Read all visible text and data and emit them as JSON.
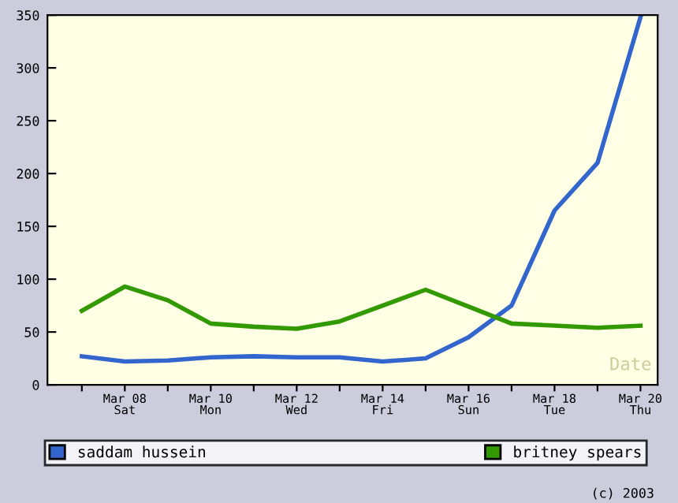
{
  "chart_data": {
    "type": "line",
    "xlabel": "Date",
    "categories": [
      null,
      "Mar 08\nSat",
      null,
      "Mar 10\nMon",
      null,
      "Mar 12\nWed",
      null,
      "Mar 14\nFri",
      null,
      "Mar 16\nSun",
      null,
      "Mar 18\nTue",
      null,
      "Mar 20\nThu"
    ],
    "series": [
      {
        "name": "saddam hussein",
        "color": "#3366cc",
        "values": [
          27,
          22,
          23,
          26,
          27,
          26,
          26,
          22,
          25,
          45,
          75,
          165,
          210,
          348
        ]
      },
      {
        "name": "britney spears",
        "color": "#339900",
        "values": [
          70,
          93,
          80,
          58,
          55,
          53,
          60,
          75,
          90,
          74,
          58,
          56,
          54,
          56
        ]
      }
    ],
    "ylim": [
      0,
      350
    ],
    "yticks": [
      0,
      50,
      100,
      150,
      200,
      250,
      300,
      350
    ],
    "grid": false,
    "legend": "bottom",
    "marker": "none",
    "line_style": "solid",
    "annotations": [
      "(c) 2003"
    ]
  }
}
